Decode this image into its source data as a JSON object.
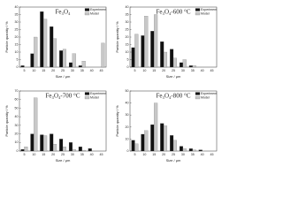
{
  "chart_data": [
    {
      "type": "bar",
      "title": "Fe₃O₄",
      "xlabel": "Size / μm",
      "ylabel": "Particle quantity / %",
      "categories": [
        5,
        10,
        15,
        20,
        25,
        30,
        35,
        40,
        45
      ],
      "series": [
        {
          "name": "Experiment",
          "color": "#111111",
          "values": [
            1,
            9,
            37,
            27,
            11,
            3,
            1,
            0,
            0
          ]
        },
        {
          "name": "Model",
          "color": "#c8c8c8",
          "values": [
            0,
            20,
            32,
            19,
            12,
            9,
            4,
            0,
            16
          ]
        }
      ],
      "ylim": [
        0,
        40
      ],
      "yticks": [
        0,
        5,
        10,
        15,
        20,
        25,
        30,
        35,
        40
      ]
    },
    {
      "type": "bar",
      "title": "Fe₃O₄-600 °C",
      "xlabel": "Size / μm",
      "ylabel": "Particle quantity / %",
      "categories": [
        5,
        10,
        15,
        20,
        25,
        30,
        35,
        40,
        45
      ],
      "series": [
        {
          "name": "Experiment",
          "color": "#111111",
          "values": [
            13,
            21,
            24,
            17,
            12,
            3,
            1,
            0,
            0
          ]
        },
        {
          "name": "Model",
          "color": "#c8c8c8",
          "values": [
            22,
            34,
            35,
            10,
            6,
            5,
            1,
            0,
            0
          ]
        }
      ],
      "ylim": [
        0,
        40
      ],
      "yticks": [
        0,
        5,
        10,
        15,
        20,
        25,
        30,
        35,
        40
      ]
    },
    {
      "type": "bar",
      "title": "Fe₃O₄-700 °C",
      "xlabel": "Size / μm",
      "ylabel": "Particle quantity / %",
      "categories": [
        5,
        10,
        15,
        20,
        25,
        30,
        35,
        40,
        45
      ],
      "series": [
        {
          "name": "Experiment",
          "color": "#111111",
          "values": [
            2,
            20,
            19,
            20,
            14,
            10,
            5,
            3,
            0
          ]
        },
        {
          "name": "Model",
          "color": "#c8c8c8",
          "values": [
            5,
            62,
            18,
            8,
            5,
            2,
            1,
            0,
            0
          ]
        }
      ],
      "ylim": [
        0,
        70
      ],
      "yticks": [
        0,
        10,
        20,
        30,
        40,
        50,
        60,
        70
      ]
    },
    {
      "type": "bar",
      "title": "Fe₃O₄-800 °C",
      "xlabel": "Size / μm",
      "ylabel": "Particle quantity / %",
      "categories": [
        5,
        10,
        15,
        20,
        25,
        30,
        35,
        40,
        45
      ],
      "series": [
        {
          "name": "Experiment",
          "color": "#111111",
          "values": [
            9,
            14,
            22,
            23,
            13,
            4,
            2,
            1,
            0
          ]
        },
        {
          "name": "Model",
          "color": "#c8c8c8",
          "values": [
            6,
            17,
            40,
            21,
            9,
            2,
            1,
            0,
            0
          ]
        }
      ],
      "ylim": [
        0,
        50
      ],
      "yticks": [
        0,
        10,
        20,
        30,
        40,
        50
      ]
    }
  ]
}
